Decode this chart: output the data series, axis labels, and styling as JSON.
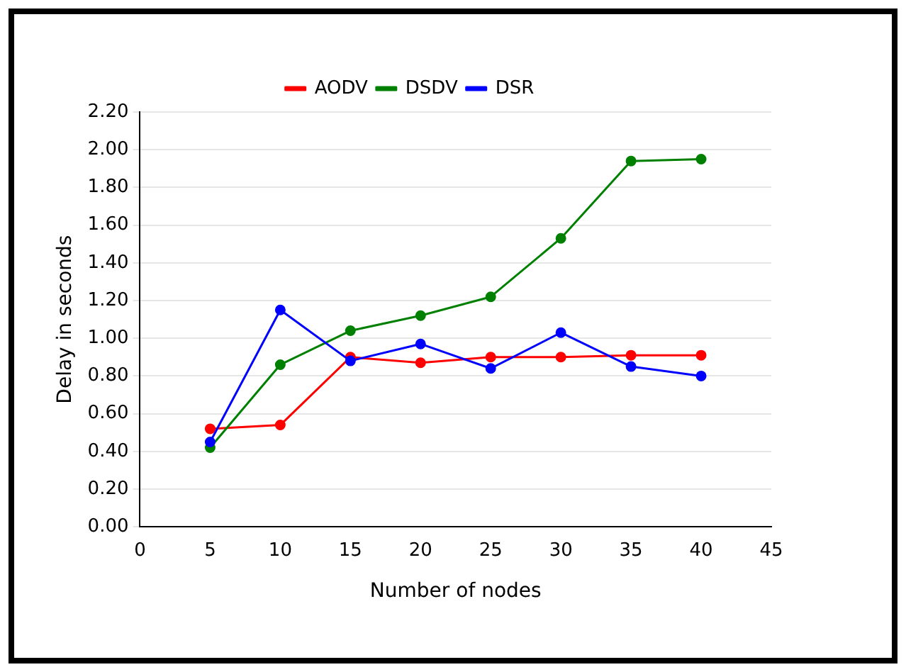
{
  "chart_data": {
    "type": "line",
    "xlabel": "Number of nodes",
    "ylabel": "Delay in seconds",
    "x": [
      5,
      10,
      15,
      20,
      25,
      30,
      35,
      40
    ],
    "series": [
      {
        "name": "AODV",
        "color": "#ff0000",
        "values": [
          0.52,
          0.54,
          0.9,
          0.87,
          0.9,
          0.9,
          0.91,
          0.91
        ]
      },
      {
        "name": "DSDV",
        "color": "#008000",
        "values": [
          0.42,
          0.86,
          1.04,
          1.12,
          1.22,
          1.53,
          1.94,
          1.95
        ]
      },
      {
        "name": "DSR",
        "color": "#0000ff",
        "values": [
          0.45,
          1.15,
          0.88,
          0.97,
          0.84,
          1.03,
          0.85,
          0.8
        ]
      }
    ],
    "xlim": [
      0,
      45
    ],
    "xticks": [
      0,
      5,
      10,
      15,
      20,
      25,
      30,
      35,
      40,
      45
    ],
    "ylim": [
      0,
      2.2
    ],
    "yticks": [
      {
        "value": 0,
        "label": "0.00"
      },
      {
        "value": 0.2,
        "label": "0.20"
      },
      {
        "value": 0.4,
        "label": "0.40"
      },
      {
        "value": 0.6,
        "label": "0.60"
      },
      {
        "value": 0.8,
        "label": "0.80"
      },
      {
        "value": 1,
        "label": "1.00"
      },
      {
        "value": 1.2,
        "label": "1.20"
      },
      {
        "value": 1.4,
        "label": "1.40"
      },
      {
        "value": 1.6,
        "label": "1.60"
      },
      {
        "value": 1.8,
        "label": "1.80"
      },
      {
        "value": 2,
        "label": "2.00"
      },
      {
        "value": 2.2,
        "label": "2.20"
      }
    ],
    "grid": "y",
    "legend": "top",
    "marker": "circle",
    "line_style": "solid"
  }
}
